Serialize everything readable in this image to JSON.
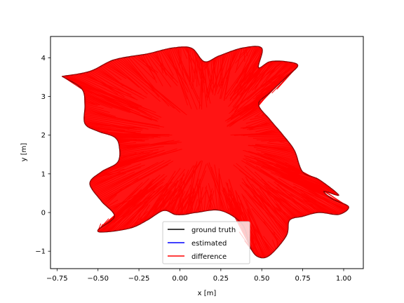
{
  "chart_data": {
    "type": "line",
    "xlabel": "x [m]",
    "ylabel": "y [m]",
    "xlim": [
      -0.79,
      1.12
    ],
    "ylim": [
      -1.45,
      4.55
    ],
    "xticks": [
      -0.75,
      -0.5,
      -0.25,
      0.0,
      0.25,
      0.5,
      0.75,
      1.0
    ],
    "xtick_labels": [
      "−0.75",
      "−0.50",
      "−0.25",
      "0.00",
      "0.25",
      "0.50",
      "0.75",
      "1.00"
    ],
    "yticks": [
      -1,
      0,
      1,
      2,
      3,
      4
    ],
    "ytick_labels": [
      "−1",
      "0",
      "1",
      "2",
      "3",
      "4"
    ],
    "grid": false,
    "legend_position": "lower-center",
    "center": [
      0.17,
      1.92
    ],
    "series": [
      {
        "name": "ground truth",
        "color": "#000000"
      },
      {
        "name": "estimated",
        "color": "#0000ff"
      },
      {
        "name": "difference",
        "color": "#ff0000"
      }
    ],
    "trajectory": [
      [
        -0.72,
        3.52
      ],
      [
        -0.55,
        3.65
      ],
      [
        -0.4,
        3.95
      ],
      [
        -0.2,
        4.1
      ],
      [
        -0.05,
        4.25
      ],
      [
        0.07,
        4.25
      ],
      [
        0.15,
        3.9
      ],
      [
        0.24,
        4.05
      ],
      [
        0.38,
        4.25
      ],
      [
        0.5,
        4.25
      ],
      [
        0.48,
        3.75
      ],
      [
        0.55,
        3.9
      ],
      [
        0.65,
        3.9
      ],
      [
        0.72,
        3.8
      ],
      [
        0.65,
        3.5
      ],
      [
        0.55,
        3.1
      ],
      [
        0.48,
        2.8
      ],
      [
        0.55,
        2.4
      ],
      [
        0.63,
        2.0
      ],
      [
        0.7,
        1.6
      ],
      [
        0.75,
        1.05
      ],
      [
        0.85,
        0.85
      ],
      [
        0.97,
        0.45
      ],
      [
        0.88,
        0.55
      ],
      [
        0.93,
        0.35
      ],
      [
        1.03,
        0.15
      ],
      [
        0.97,
        -0.05
      ],
      [
        0.85,
        0.0
      ],
      [
        0.75,
        -0.1
      ],
      [
        0.67,
        -0.2
      ],
      [
        0.65,
        -0.6
      ],
      [
        0.55,
        -1.1
      ],
      [
        0.48,
        -1.15
      ],
      [
        0.43,
        -0.9
      ],
      [
        0.38,
        -0.3
      ],
      [
        0.25,
        0.05
      ],
      [
        0.1,
        0.0
      ],
      [
        0.03,
        -0.05
      ],
      [
        -0.03,
        -0.05
      ],
      [
        -0.1,
        0.05
      ],
      [
        -0.2,
        -0.2
      ],
      [
        -0.3,
        -0.4
      ],
      [
        -0.45,
        -0.5
      ],
      [
        -0.5,
        -0.45
      ],
      [
        -0.4,
        -0.1
      ],
      [
        -0.48,
        0.3
      ],
      [
        -0.55,
        0.75
      ],
      [
        -0.48,
        1.05
      ],
      [
        -0.38,
        1.3
      ],
      [
        -0.37,
        1.7
      ],
      [
        -0.4,
        1.95
      ],
      [
        -0.5,
        2.1
      ],
      [
        -0.58,
        2.3
      ],
      [
        -0.58,
        2.8
      ],
      [
        -0.6,
        3.2
      ],
      [
        -0.72,
        3.52
      ]
    ]
  }
}
